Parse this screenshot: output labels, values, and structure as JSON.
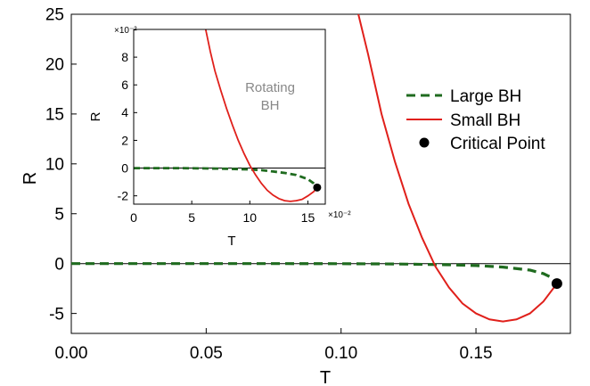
{
  "chart_data": [
    {
      "type": "line",
      "xlabel": "T",
      "ylabel": "R",
      "xlim": [
        0.0,
        0.185
      ],
      "ylim": [
        -7.0,
        25.0
      ],
      "xticks": [
        "0.00",
        "0.05",
        "0.10",
        "0.15"
      ],
      "yticks": [
        "-5",
        "0",
        "5",
        "10",
        "15",
        "20",
        "25"
      ],
      "xtick_values": [
        0.0,
        0.05,
        0.1,
        0.15
      ],
      "ytick_values": [
        -5,
        0,
        5,
        10,
        15,
        20,
        25
      ],
      "series": [
        {
          "name": "Large BH",
          "style": "dashed",
          "color": "#1f6b1f",
          "x": [
            0.0,
            0.02,
            0.04,
            0.06,
            0.08,
            0.1,
            0.12,
            0.14,
            0.15,
            0.16,
            0.17,
            0.175,
            0.178,
            0.18
          ],
          "y": [
            0.0,
            0.0,
            0.0,
            0.0,
            0.0,
            -0.01,
            -0.04,
            -0.12,
            -0.2,
            -0.35,
            -0.65,
            -1.0,
            -1.4,
            -2.0
          ]
        },
        {
          "name": "Small BH",
          "style": "solid",
          "color": "#e0201b",
          "x": [
            0.1064,
            0.11,
            0.115,
            0.12,
            0.125,
            0.13,
            0.135,
            0.14,
            0.145,
            0.15,
            0.155,
            0.16,
            0.165,
            0.17,
            0.175,
            0.18
          ],
          "y": [
            25.0,
            21.0,
            15.0,
            10.2,
            6.0,
            2.6,
            -0.3,
            -2.4,
            -4.0,
            -5.0,
            -5.6,
            -5.8,
            -5.6,
            -5.0,
            -3.8,
            -2.0
          ]
        }
      ],
      "critical_point": {
        "name": "Critical Point",
        "x": 0.18,
        "y": -2.0
      },
      "legend": {
        "placement": "right",
        "entries": [
          "Large BH",
          "Small BH",
          "Critical Point"
        ]
      },
      "grid": false,
      "zero_line": true
    },
    {
      "type": "line",
      "inset": true,
      "xlabel": "T",
      "ylabel": "R",
      "x_multiplier": "×10⁻²",
      "y_multiplier": "×10⁻²",
      "annotation": "Rotating BH",
      "xlim": [
        0,
        16.5
      ],
      "ylim": [
        -2.6,
        10.0
      ],
      "xticks": [
        "0",
        "5",
        "10",
        "15"
      ],
      "yticks": [
        "-2",
        "0",
        "2",
        "4",
        "6",
        "8"
      ],
      "xtick_values": [
        0,
        5,
        10,
        15
      ],
      "ytick_values": [
        -2,
        0,
        2,
        4,
        6,
        8
      ],
      "series": [
        {
          "name": "Large BH",
          "style": "dashed",
          "color": "#1f6b1f",
          "x": [
            0,
            2,
            4,
            6,
            8,
            10,
            11,
            12,
            13,
            14,
            15,
            15.5,
            15.8
          ],
          "y": [
            0,
            0,
            0,
            -0.02,
            -0.05,
            -0.1,
            -0.15,
            -0.25,
            -0.35,
            -0.5,
            -0.8,
            -1.1,
            -1.4
          ]
        },
        {
          "name": "Small BH",
          "style": "solid",
          "color": "#e0201b",
          "x": [
            6.2,
            6.6,
            7.0,
            7.5,
            8.0,
            8.5,
            9.0,
            9.5,
            10.0,
            10.5,
            11.0,
            11.5,
            12.0,
            12.5,
            13.0,
            13.5,
            14.0,
            14.5,
            15.0,
            15.5,
            15.8
          ],
          "y": [
            10.0,
            8.4,
            7.0,
            5.6,
            4.3,
            3.1,
            2.0,
            1.05,
            0.2,
            -0.5,
            -1.1,
            -1.6,
            -1.95,
            -2.2,
            -2.35,
            -2.4,
            -2.35,
            -2.25,
            -2.0,
            -1.7,
            -1.4
          ]
        }
      ],
      "critical_point": {
        "x": 15.8,
        "y": -1.4
      },
      "grid": false,
      "zero_line": true
    }
  ]
}
